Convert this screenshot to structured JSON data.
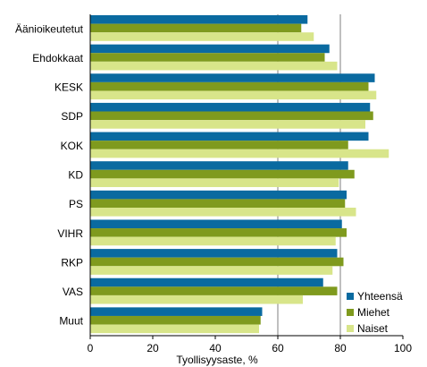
{
  "chart_data": {
    "type": "bar",
    "orientation": "horizontal",
    "title": "",
    "xlabel": "Tyollisyysaste, %",
    "ylabel": "",
    "xlim": [
      0,
      100
    ],
    "xticks": [
      "0",
      "20",
      "40",
      "60",
      "80",
      "100"
    ],
    "grid": "vertical lines at 60 and 80",
    "legend_position": "bottom-right",
    "categories": [
      "Äänioikeutetut",
      "Ehdokkaat",
      "KESK",
      "SDP",
      "KOK",
      "KD",
      "PS",
      "VIHR",
      "RKP",
      "VAS",
      "Muut"
    ],
    "series": [
      {
        "name": "Yhteensä",
        "color": "#0a6aa0",
        "values": [
          69.5,
          76.5,
          91,
          89.5,
          89,
          82.5,
          82,
          80.5,
          79,
          74.5,
          55
        ]
      },
      {
        "name": "Miehet",
        "color": "#7f9a1e",
        "values": [
          67.5,
          75,
          89,
          90.5,
          82.5,
          84.5,
          81.5,
          82,
          81,
          79,
          54.5
        ]
      },
      {
        "name": "Naiset",
        "color": "#d8e58a",
        "values": [
          71.5,
          79,
          91.5,
          88,
          95.5,
          79.5,
          85,
          78.5,
          77.5,
          68,
          54
        ]
      }
    ]
  }
}
